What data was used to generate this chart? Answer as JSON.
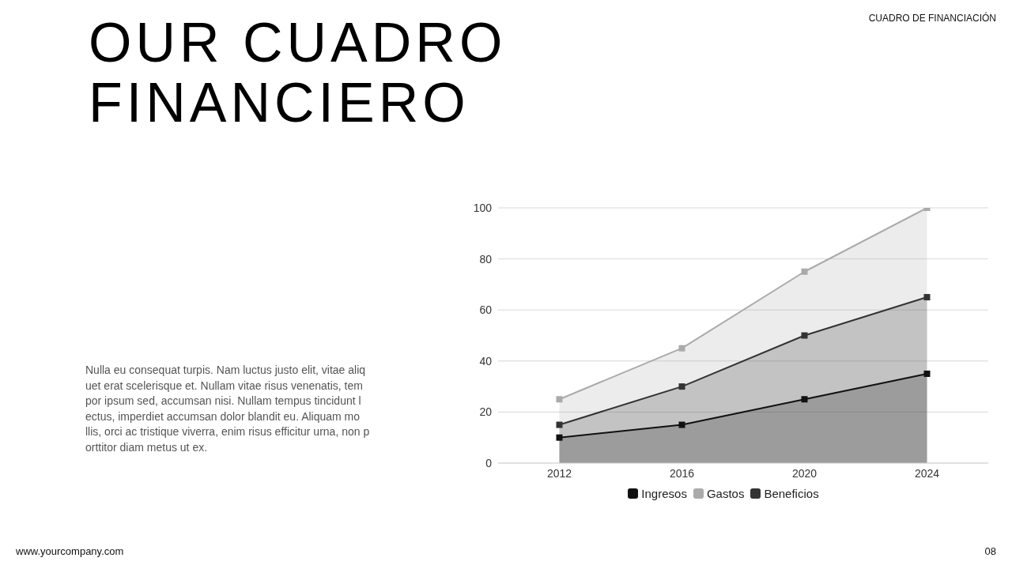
{
  "chart_data": {
    "type": "area",
    "title": "OUR CUADRO FINANCIERO",
    "annotations": [
      "CUADRO DE FINANCIACIÓN",
      "Nulla eu consequat turpis. Nam luctus justo elit, vitae aliq\nuet erat scelerisque et. Nullam vitae risus venenatis, tem\npor ipsum sed, accumsan nisi. Nullam tempus tincidunt l\nectus, imperdiet accumsan dolor blandit eu. Aliquam mo\nllis, orci ac tristique viverra, enim risus efficitur urna, non p\norttitor diam metus ut ex.",
      "www.yourcompany.com",
      "08"
    ],
    "categories": [
      "2012",
      "2016",
      "2020",
      "2024"
    ],
    "series": [
      {
        "name": "Ingresos",
        "color": "#111111",
        "values": [
          10,
          15,
          25,
          35
        ]
      },
      {
        "name": "Gastos",
        "color": "#aaaaaa",
        "values": [
          25,
          45,
          75,
          100
        ]
      },
      {
        "name": "Beneficios",
        "color": "#333333",
        "values": [
          15,
          30,
          50,
          65
        ]
      }
    ],
    "ylim": [
      0,
      100
    ],
    "yticks": [
      0,
      20,
      40,
      60,
      80,
      100
    ],
    "grid": "y",
    "legend": "bottom",
    "marker": "square",
    "line_style": "solid"
  }
}
